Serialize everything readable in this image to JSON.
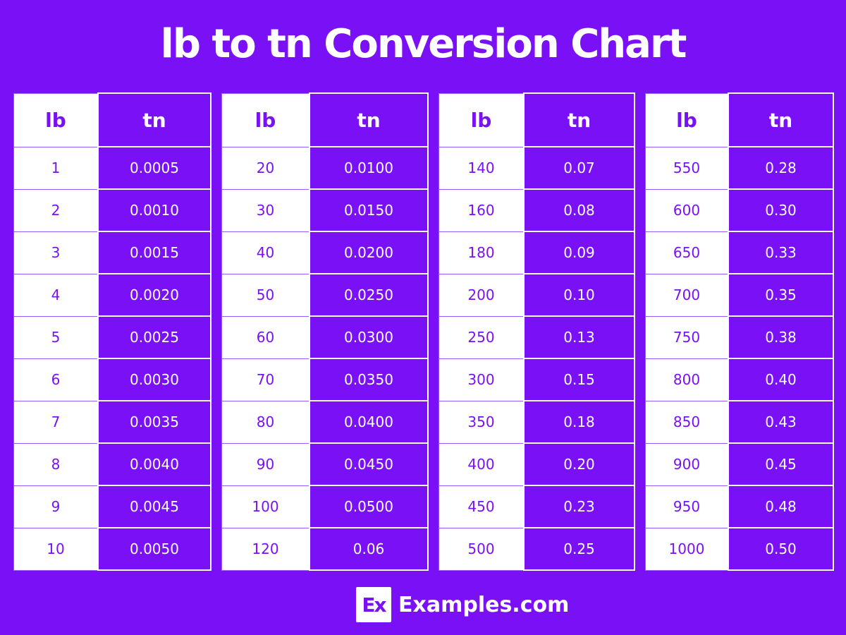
{
  "title": "lb to tn Conversion Chart",
  "colors": {
    "background": "#7a10f5",
    "lb_column": "#ffffff",
    "tn_column": "#7a10f5"
  },
  "tables": [
    {
      "headers": [
        "lb",
        "tn"
      ],
      "rows": [
        [
          "1",
          "0.0005"
        ],
        [
          "2",
          "0.0010"
        ],
        [
          "3",
          "0.0015"
        ],
        [
          "4",
          "0.0020"
        ],
        [
          "5",
          "0.0025"
        ],
        [
          "6",
          "0.0030"
        ],
        [
          "7",
          "0.0035"
        ],
        [
          "8",
          "0.0040"
        ],
        [
          "9",
          "0.0045"
        ],
        [
          "10",
          "0.0050"
        ]
      ]
    },
    {
      "headers": [
        "lb",
        "tn"
      ],
      "rows": [
        [
          "20",
          "0.0100"
        ],
        [
          "30",
          "0.0150"
        ],
        [
          "40",
          "0.0200"
        ],
        [
          "50",
          "0.0250"
        ],
        [
          "60",
          "0.0300"
        ],
        [
          "70",
          "0.0350"
        ],
        [
          "80",
          "0.0400"
        ],
        [
          "90",
          "0.0450"
        ],
        [
          "100",
          "0.0500"
        ],
        [
          "120",
          "0.06"
        ]
      ]
    },
    {
      "headers": [
        "lb",
        "tn"
      ],
      "rows": [
        [
          "140",
          "0.07"
        ],
        [
          "160",
          "0.08"
        ],
        [
          "180",
          "0.09"
        ],
        [
          "200",
          "0.10"
        ],
        [
          "250",
          "0.13"
        ],
        [
          "300",
          "0.15"
        ],
        [
          "350",
          "0.18"
        ],
        [
          "400",
          "0.20"
        ],
        [
          "450",
          "0.23"
        ],
        [
          "500",
          "0.25"
        ]
      ]
    },
    {
      "headers": [
        "lb",
        "tn"
      ],
      "rows": [
        [
          "550",
          "0.28"
        ],
        [
          "600",
          "0.30"
        ],
        [
          "650",
          "0.33"
        ],
        [
          "700",
          "0.35"
        ],
        [
          "750",
          "0.38"
        ],
        [
          "800",
          "0.40"
        ],
        [
          "850",
          "0.43"
        ],
        [
          "900",
          "0.45"
        ],
        [
          "950",
          "0.48"
        ],
        [
          "1000",
          "0.50"
        ]
      ]
    }
  ],
  "footer": {
    "logo": "Ex",
    "site": "Examples.com"
  }
}
